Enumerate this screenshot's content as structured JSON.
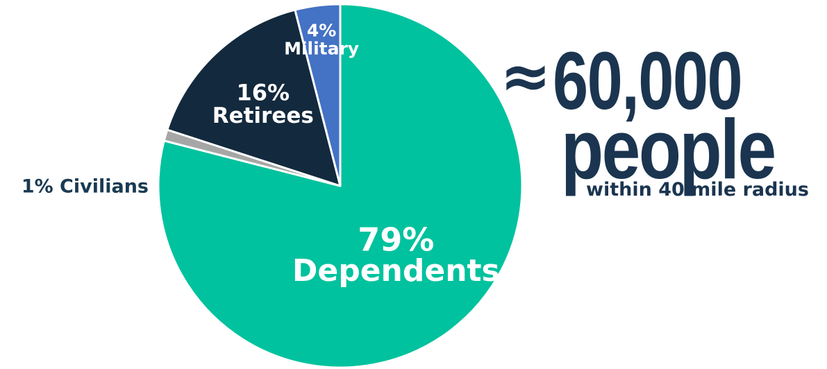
{
  "chart_data": {
    "type": "pie",
    "slices": [
      {
        "category": "Dependents",
        "percent_label": "79%",
        "value": 79,
        "color": "#00c29e"
      },
      {
        "category": "Civilians",
        "percent_label": "1%",
        "value": 1,
        "color": "#a6a6a6"
      },
      {
        "category": "Retirees",
        "percent_label": "16%",
        "value": 16,
        "color": "#13293d"
      },
      {
        "category": "Military",
        "percent_label": "4%",
        "value": 4,
        "color": "#4472c4"
      }
    ],
    "legend": "none"
  },
  "headline": {
    "approx_symbol": "≈",
    "number": "60,000",
    "unit": "people",
    "caption": "within 40 mile radius",
    "color": "#1b3550"
  }
}
